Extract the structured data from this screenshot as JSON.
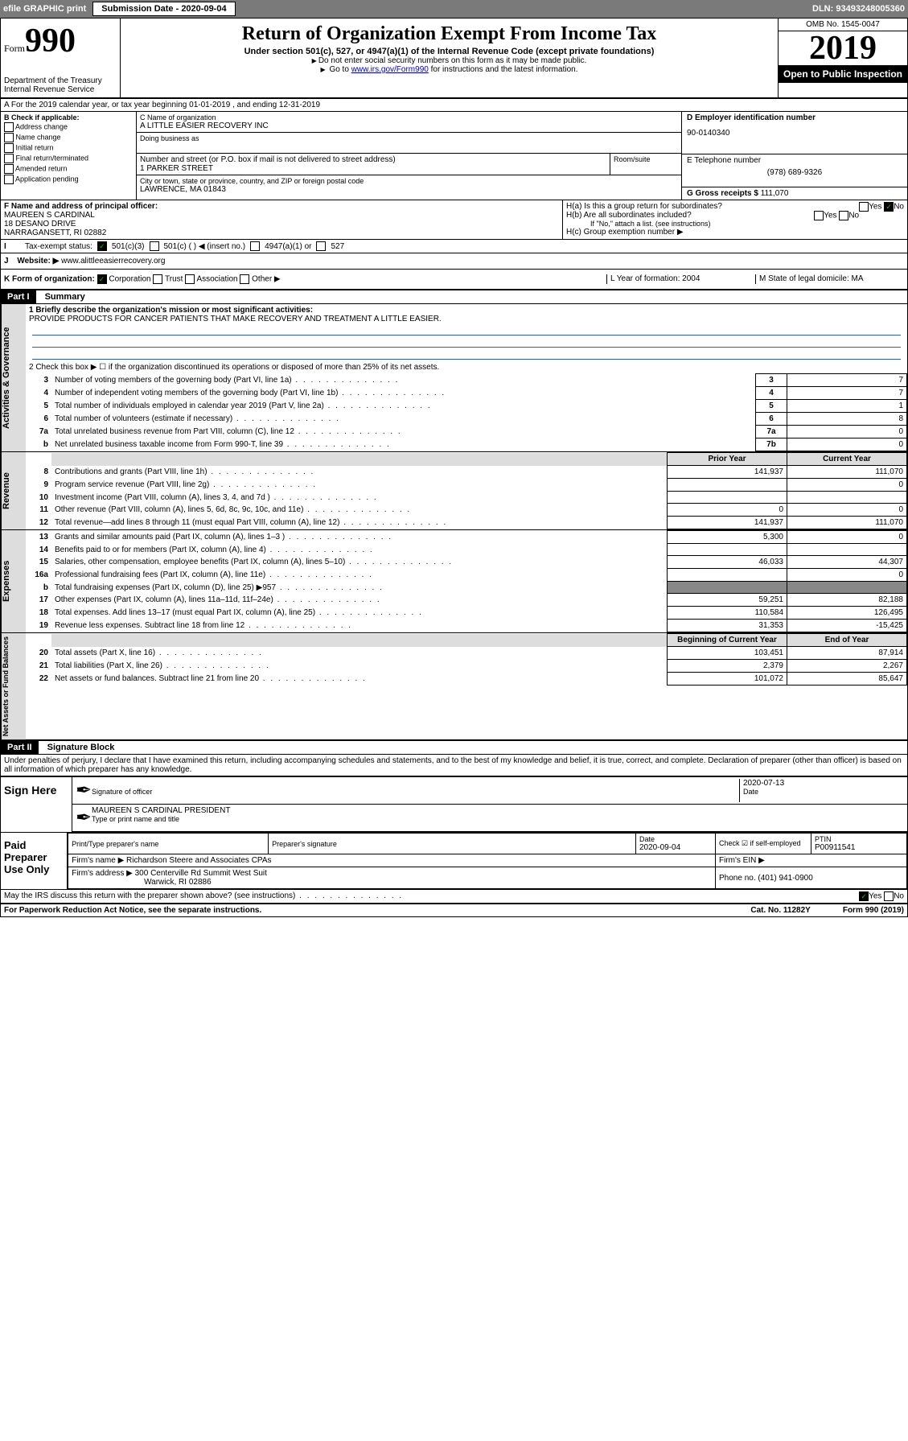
{
  "header": {
    "efile": "efile GRAPHIC print",
    "submission_label": "Submission Date - 2020-09-04",
    "dln": "DLN: 93493248005360"
  },
  "top": {
    "form_word": "Form",
    "form_num": "990",
    "dept": "Department of the Treasury\nInternal Revenue Service",
    "title": "Return of Organization Exempt From Income Tax",
    "subtitle": "Under section 501(c), 527, or 4947(a)(1) of the Internal Revenue Code (except private foundations)",
    "note1": "Do not enter social security numbers on this form as it may be made public.",
    "note2_pre": "Go to ",
    "note2_link": "www.irs.gov/Form990",
    "note2_post": " for instructions and the latest information.",
    "omb": "OMB No. 1545-0047",
    "year": "2019",
    "open": "Open to Public Inspection"
  },
  "rowA": "A For the 2019 calendar year, or tax year beginning 01-01-2019  , and ending 12-31-2019",
  "B": {
    "label": "B Check if applicable:",
    "opts": [
      "Address change",
      "Name change",
      "Initial return",
      "Final return/terminated",
      "Amended return",
      "Application pending"
    ]
  },
  "C": {
    "name_label": "C Name of organization",
    "name": "A LITTLE EASIER RECOVERY INC",
    "dba_label": "Doing business as",
    "addr_label": "Number and street (or P.O. box if mail is not delivered to street address)",
    "addr": "1 PARKER STREET",
    "room_label": "Room/suite",
    "city_label": "City or town, state or province, country, and ZIP or foreign postal code",
    "city": "LAWRENCE, MA  01843"
  },
  "D": {
    "label": "D Employer identification number",
    "val": "90-0140340"
  },
  "E": {
    "label": "E Telephone number",
    "val": "(978) 689-9326"
  },
  "G": {
    "label": "G Gross receipts $",
    "val": "111,070"
  },
  "F": {
    "label": "F  Name and address of principal officer:",
    "name": "MAUREEN S CARDINAL",
    "addr1": "18 DESANO DRIVE",
    "addr2": "NARRAGANSETT, RI  02882"
  },
  "H": {
    "a": "H(a)  Is this a group return for subordinates?",
    "b": "H(b)  Are all subordinates included?",
    "b_note": "If \"No,\" attach a list. (see instructions)",
    "c": "H(c)  Group exemption number ▶"
  },
  "I": {
    "label": "Tax-exempt status:",
    "opt1": "501(c)(3)",
    "opt2": "501(c) (   ) ◀ (insert no.)",
    "opt3": "4947(a)(1) or",
    "opt4": "527"
  },
  "J": {
    "label": "Website: ▶",
    "val": "www.alittleeasierrecovery.org"
  },
  "K": {
    "label": "K Form of organization:",
    "opts": [
      "Corporation",
      "Trust",
      "Association",
      "Other ▶"
    ]
  },
  "L": {
    "label": "L Year of formation:",
    "val": "2004"
  },
  "M": {
    "label": "M State of legal domicile:",
    "val": "MA"
  },
  "part1": {
    "header": "Part I",
    "title": "Summary",
    "line1_label": "1  Briefly describe the organization's mission or most significant activities:",
    "line1_val": "PROVIDE PRODUCTS FOR CANCER PATIENTS THAT MAKE RECOVERY AND TREATMENT A LITTLE EASIER.",
    "line2": "2  Check this box ▶ ☐  if the organization discontinued its operations or disposed of more than 25% of its net assets.",
    "lines_small": [
      {
        "n": "3",
        "d": "Number of voting members of the governing body (Part VI, line 1a)",
        "box": "3",
        "v": "7"
      },
      {
        "n": "4",
        "d": "Number of independent voting members of the governing body (Part VI, line 1b)",
        "box": "4",
        "v": "7"
      },
      {
        "n": "5",
        "d": "Total number of individuals employed in calendar year 2019 (Part V, line 2a)",
        "box": "5",
        "v": "1"
      },
      {
        "n": "6",
        "d": "Total number of volunteers (estimate if necessary)",
        "box": "6",
        "v": "8"
      },
      {
        "n": "7a",
        "d": "Total unrelated business revenue from Part VIII, column (C), line 12",
        "box": "7a",
        "v": "0"
      },
      {
        "n": "b",
        "d": "Net unrelated business taxable income from Form 990-T, line 39",
        "box": "7b",
        "v": "0"
      }
    ],
    "col_prior": "Prior Year",
    "col_current": "Current Year",
    "revenue": [
      {
        "n": "8",
        "d": "Contributions and grants (Part VIII, line 1h)",
        "p": "141,937",
        "c": "111,070"
      },
      {
        "n": "9",
        "d": "Program service revenue (Part VIII, line 2g)",
        "p": "",
        "c": "0"
      },
      {
        "n": "10",
        "d": "Investment income (Part VIII, column (A), lines 3, 4, and 7d )",
        "p": "",
        "c": ""
      },
      {
        "n": "11",
        "d": "Other revenue (Part VIII, column (A), lines 5, 6d, 8c, 9c, 10c, and 11e)",
        "p": "0",
        "c": "0"
      },
      {
        "n": "12",
        "d": "Total revenue—add lines 8 through 11 (must equal Part VIII, column (A), line 12)",
        "p": "141,937",
        "c": "111,070"
      }
    ],
    "expenses": [
      {
        "n": "13",
        "d": "Grants and similar amounts paid (Part IX, column (A), lines 1–3 )",
        "p": "5,300",
        "c": "0"
      },
      {
        "n": "14",
        "d": "Benefits paid to or for members (Part IX, column (A), line 4)",
        "p": "",
        "c": ""
      },
      {
        "n": "15",
        "d": "Salaries, other compensation, employee benefits (Part IX, column (A), lines 5–10)",
        "p": "46,033",
        "c": "44,307"
      },
      {
        "n": "16a",
        "d": "Professional fundraising fees (Part IX, column (A), line 11e)",
        "p": "",
        "c": "0"
      },
      {
        "n": "b",
        "d": "Total fundraising expenses (Part IX, column (D), line 25) ▶957",
        "p": "—",
        "c": "—"
      },
      {
        "n": "17",
        "d": "Other expenses (Part IX, column (A), lines 11a–11d, 11f–24e)",
        "p": "59,251",
        "c": "82,188"
      },
      {
        "n": "18",
        "d": "Total expenses. Add lines 13–17 (must equal Part IX, column (A), line 25)",
        "p": "110,584",
        "c": "126,495"
      },
      {
        "n": "19",
        "d": "Revenue less expenses. Subtract line 18 from line 12",
        "p": "31,353",
        "c": "-15,425"
      }
    ],
    "col_begin": "Beginning of Current Year",
    "col_end": "End of Year",
    "netassets": [
      {
        "n": "20",
        "d": "Total assets (Part X, line 16)",
        "p": "103,451",
        "c": "87,914"
      },
      {
        "n": "21",
        "d": "Total liabilities (Part X, line 26)",
        "p": "2,379",
        "c": "2,267"
      },
      {
        "n": "22",
        "d": "Net assets or fund balances. Subtract line 21 from line 20",
        "p": "101,072",
        "c": "85,647"
      }
    ],
    "vtab_gov": "Activities & Governance",
    "vtab_rev": "Revenue",
    "vtab_exp": "Expenses",
    "vtab_net": "Net Assets or Fund Balances"
  },
  "part2": {
    "header": "Part II",
    "title": "Signature Block",
    "perjury": "Under penalties of perjury, I declare that I have examined this return, including accompanying schedules and statements, and to the best of my knowledge and belief, it is true, correct, and complete. Declaration of preparer (other than officer) is based on all information of which preparer has any knowledge.",
    "sign_here": "Sign Here",
    "sig_officer": "Signature of officer",
    "sig_date": "2020-07-13",
    "date_label": "Date",
    "officer_name": "MAUREEN S CARDINAL  PRESIDENT",
    "type_label": "Type or print name and title",
    "paid_label": "Paid Preparer Use Only",
    "prep_name_label": "Print/Type preparer's name",
    "prep_sig_label": "Preparer's signature",
    "prep_date": "2020-09-04",
    "check_if": "Check ☑ if self-employed",
    "ptin_label": "PTIN",
    "ptin": "P00911541",
    "firm_name_label": "Firm's name  ▶",
    "firm_name": "Richardson Steere and Associates CPAs",
    "firm_ein_label": "Firm's EIN ▶",
    "firm_addr_label": "Firm's address ▶",
    "firm_addr": "300 Centerville Rd Summit West Suit",
    "firm_city": "Warwick, RI  02886",
    "firm_phone_label": "Phone no.",
    "firm_phone": "(401) 941-0900",
    "discuss": "May the IRS discuss this return with the preparer shown above? (see instructions)"
  },
  "footer": {
    "paperwork": "For Paperwork Reduction Act Notice, see the separate instructions.",
    "cat": "Cat. No. 11282Y",
    "form": "Form 990 (2019)"
  }
}
